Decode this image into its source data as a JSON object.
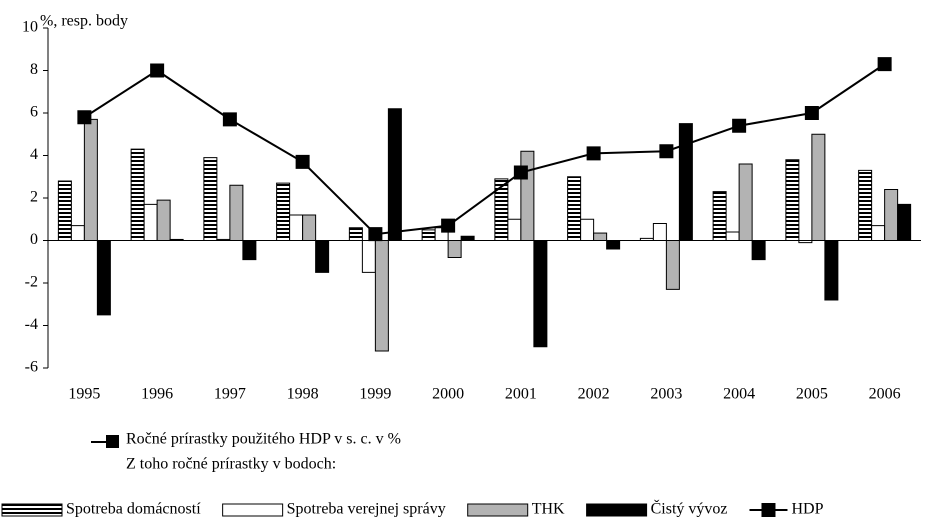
{
  "chart_data": {
    "type": "bar_line",
    "y_axis_label": "%, resp. body",
    "notes": [
      "Ročné prírastky použitého HDP v s. c.  v %",
      "Z toho ročné prírastky v bodoch:"
    ],
    "categories": [
      "1995",
      "1996",
      "1997",
      "1998",
      "1999",
      "2000",
      "2001",
      "2002",
      "2003",
      "2004",
      "2005",
      "2006"
    ],
    "ylim": [
      -6,
      10
    ],
    "yticks": [
      -6,
      -4,
      -2,
      0,
      2,
      4,
      6,
      8,
      10
    ],
    "series": [
      {
        "name": "Spotreba domácností",
        "kind": "bar",
        "color": "#000000",
        "pattern": "horizontal-stripes",
        "values": [
          2.8,
          4.3,
          3.9,
          2.7,
          0.6,
          0.5,
          2.9,
          3.0,
          0.1,
          2.3,
          3.8,
          3.3
        ]
      },
      {
        "name": "Spotreba verejnej správy",
        "kind": "bar",
        "color": "#ffffff",
        "values": [
          0.7,
          1.7,
          0.05,
          1.2,
          -1.5,
          0.6,
          1.0,
          1.0,
          0.8,
          0.4,
          -0.1,
          0.7
        ]
      },
      {
        "name": "THK",
        "kind": "bar",
        "color": "#b3b3b3",
        "values": [
          5.7,
          1.9,
          2.6,
          1.2,
          -5.2,
          -0.8,
          4.2,
          0.35,
          -2.3,
          3.6,
          5.0,
          2.4
        ]
      },
      {
        "name": "Čistý vývoz",
        "kind": "bar",
        "color": "#000000",
        "values": [
          -3.5,
          0.05,
          -0.9,
          -1.5,
          6.2,
          0.2,
          -5.0,
          -0.4,
          5.5,
          -0.9,
          -2.8,
          1.7
        ]
      },
      {
        "name": "HDP",
        "kind": "line",
        "color": "#000000",
        "values": [
          5.8,
          8.0,
          5.7,
          3.7,
          0.3,
          0.7,
          3.2,
          4.1,
          4.2,
          5.4,
          6.0,
          8.3
        ]
      }
    ]
  }
}
